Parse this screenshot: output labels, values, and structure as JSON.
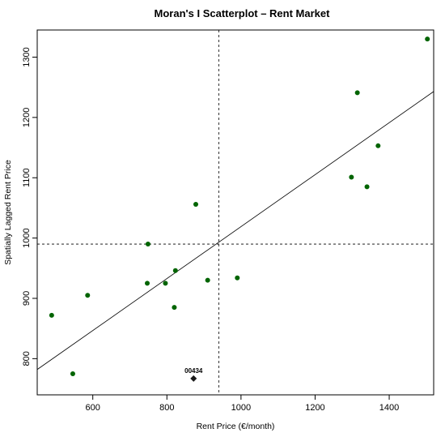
{
  "chart_data": {
    "type": "scatter",
    "title": "Moran's I Scatterplot – Rent Market",
    "xlabel": "Rent Price (€/month)",
    "ylabel": "Spatially Lagged Rent Price",
    "xlim": [
      450,
      1520
    ],
    "ylim": [
      740,
      1345
    ],
    "xticks": [
      600,
      800,
      1000,
      1200,
      1400
    ],
    "yticks": [
      800,
      900,
      1000,
      1100,
      1200,
      1300
    ],
    "xticklabels": [
      "600",
      "800",
      "1000",
      "1200",
      "1400"
    ],
    "yticklabels": [
      "800",
      "900",
      "1000",
      "1100",
      "1200",
      "1300"
    ],
    "mean_x": 940,
    "mean_y": 990,
    "regression": {
      "x1": 450,
      "y1": 782,
      "x2": 1520,
      "y2": 1243
    },
    "point_color": "#006400",
    "points": [
      {
        "x": 1503,
        "y": 1330
      },
      {
        "x": 1314,
        "y": 1241
      },
      {
        "x": 1370,
        "y": 1153
      },
      {
        "x": 1298,
        "y": 1101
      },
      {
        "x": 1340,
        "y": 1085
      },
      {
        "x": 878,
        "y": 1056
      },
      {
        "x": 749,
        "y": 990
      },
      {
        "x": 990,
        "y": 934
      },
      {
        "x": 823,
        "y": 946
      },
      {
        "x": 910,
        "y": 930
      },
      {
        "x": 747,
        "y": 925
      },
      {
        "x": 796,
        "y": 925
      },
      {
        "x": 586,
        "y": 905
      },
      {
        "x": 820,
        "y": 885
      },
      {
        "x": 489,
        "y": 872
      },
      {
        "x": 546,
        "y": 775
      }
    ],
    "highlight": {
      "x": 872,
      "y": 767,
      "label": "00434"
    }
  }
}
